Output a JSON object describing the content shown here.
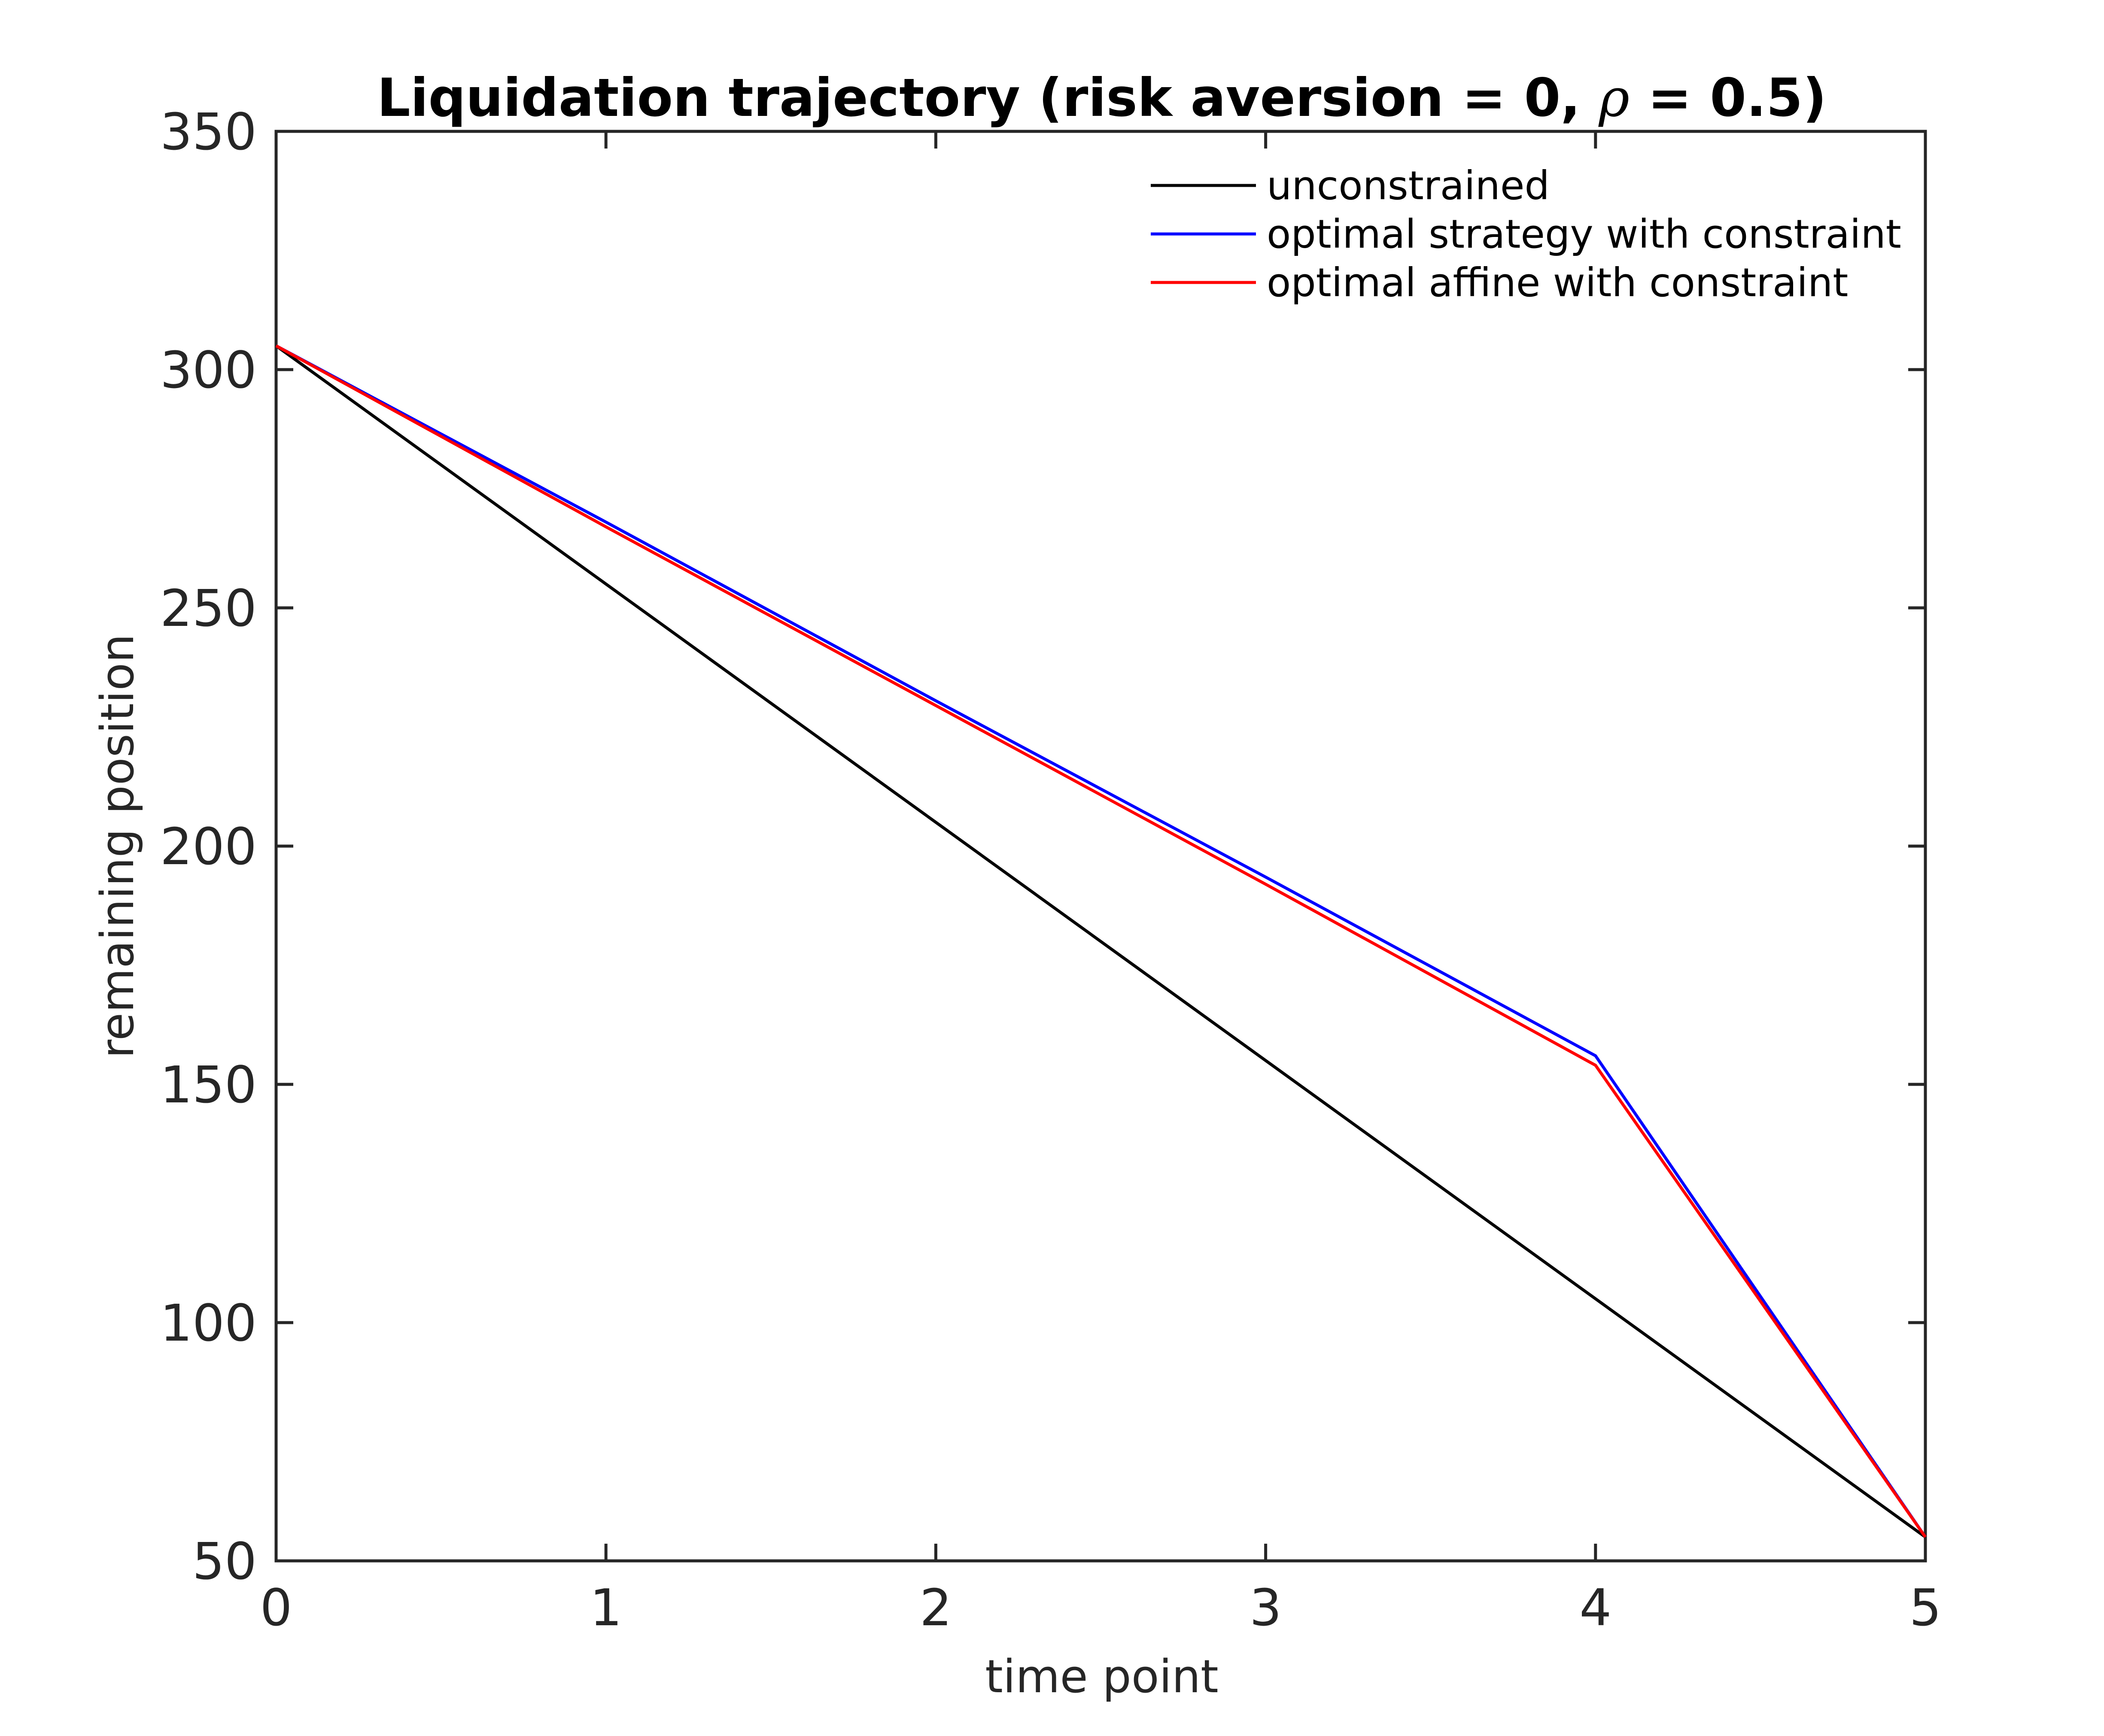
{
  "chart_data": {
    "type": "line",
    "title_main": "Liquidation trajectory (risk aversion = 0, ",
    "title_symbol": "ρ",
    "title_tail": " = 0.5)",
    "xlabel": "time point",
    "ylabel": "remaining position",
    "xlim": [
      0,
      5
    ],
    "ylim": [
      50,
      350
    ],
    "xticks": [
      0,
      1,
      2,
      3,
      4,
      5
    ],
    "yticks": [
      50,
      100,
      150,
      200,
      250,
      300,
      350
    ],
    "xtick_labels": [
      "0",
      "1",
      "2",
      "3",
      "4",
      "5"
    ],
    "ytick_labels": [
      "50",
      "100",
      "150",
      "200",
      "250",
      "300",
      "350"
    ],
    "grid": false,
    "legend_position": "top-right",
    "x": [
      0,
      1,
      2,
      3,
      4,
      5
    ],
    "series": [
      {
        "name": "unconstrained",
        "color": "#000000",
        "values": [
          305,
          255,
          205,
          155,
          105,
          55
        ]
      },
      {
        "name": "optimal strategy with constraint",
        "color": "#0000ff",
        "values": [
          305,
          268,
          230.5,
          193.5,
          156,
          55
        ]
      },
      {
        "name": "optimal affine with constraint",
        "color": "#ff0000",
        "values": [
          305,
          267,
          229.5,
          192,
          154,
          55
        ]
      }
    ]
  }
}
